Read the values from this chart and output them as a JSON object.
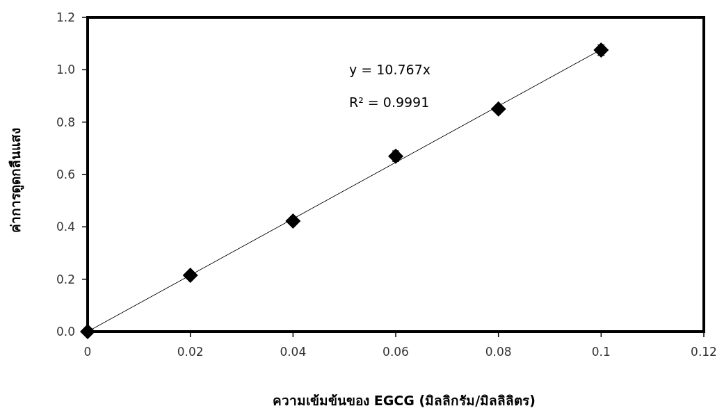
{
  "chart_data": {
    "type": "scatter",
    "xlabel": "ความเข้มข้นของ EGCG (มิลลิกรัม/มิลลิลิตร)",
    "ylabel": "ค่าการดูดกลืนแสง",
    "x": [
      0,
      0.02,
      0.04,
      0.06,
      0.08,
      0.1
    ],
    "series": [
      {
        "color": "#000000",
        "marker": "diamond",
        "values": [
          0,
          0.215,
          0.422,
          0.67,
          0.85,
          1.075
        ],
        "errors": [
          null,
          null,
          null,
          0.02,
          null,
          0.02
        ]
      },
      {
        "type": "line",
        "color": "#000000",
        "x": [
          0,
          0.1
        ],
        "values": [
          0,
          1.077
        ]
      }
    ],
    "annotations": [
      {
        "text": "y = 10.767x"
      },
      {
        "text": "R² = 0.9991"
      }
    ],
    "xlim": [
      0,
      0.12
    ],
    "xticks": [
      0,
      0.02,
      0.04,
      0.06,
      0.08,
      0.1,
      0.12
    ],
    "ylim": [
      0,
      1.2
    ],
    "yticks": [
      {
        "value": 0,
        "label": "0.0"
      },
      0.2,
      0.4,
      0.6,
      0.8,
      {
        "value": 1,
        "label": "1.0"
      },
      1.2
    ],
    "grid": false
  }
}
